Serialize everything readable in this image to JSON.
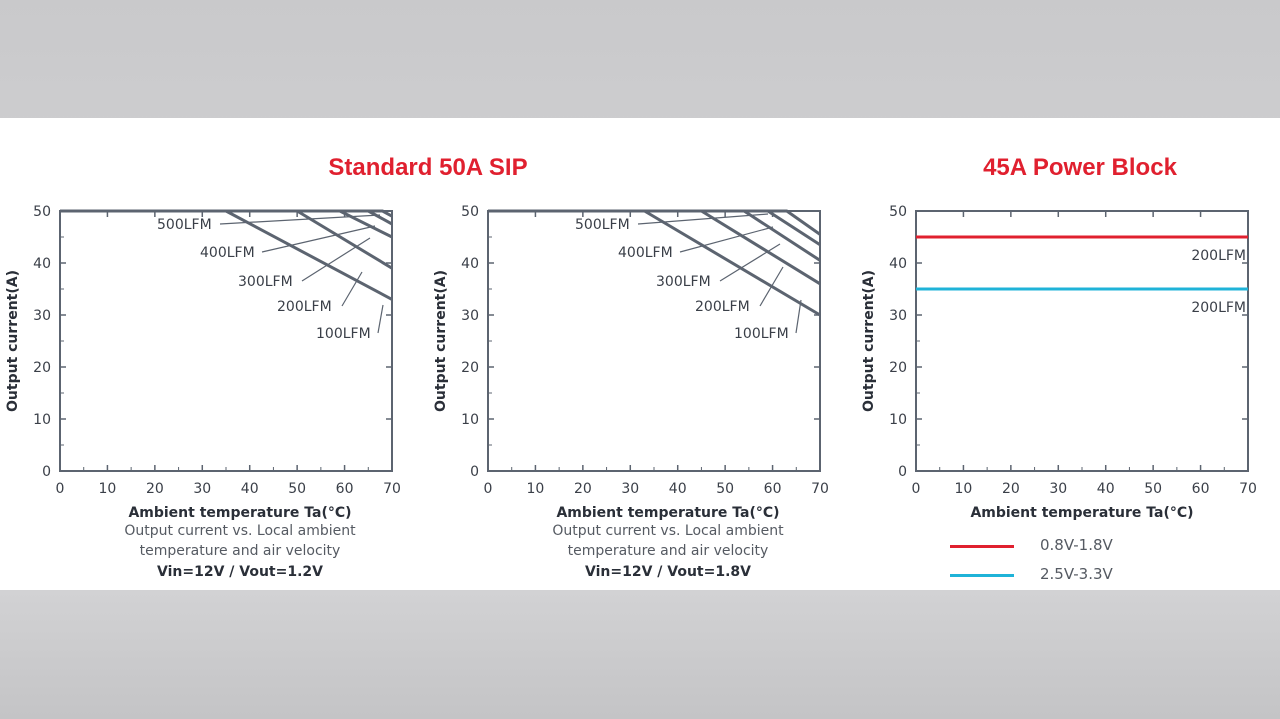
{
  "titles": {
    "sip": "Standard 50A SIP",
    "power_block": "45A Power Block"
  },
  "captions": {
    "chart1": {
      "xlabel": "Ambient temperature Ta(°C)",
      "line1": "Output current vs. Local ambient",
      "line2": "temperature and air velocity",
      "condition": "Vin=12V /  Vout=1.2V"
    },
    "chart2": {
      "xlabel": "Ambient temperature Ta(°C)",
      "line1": "Output current vs. Local ambient",
      "line2": "temperature and air velocity",
      "condition": "Vin=12V /  Vout=1.8V"
    },
    "chart3": {
      "xlabel": "Ambient temperature Ta(°C)"
    }
  },
  "legend": [
    {
      "label": "0.8V-1.8V",
      "color": "#e0202f"
    },
    {
      "label": "2.5V-3.3V",
      "color": "#1fb3d8"
    }
  ],
  "colors": {
    "title_red": "#e0202f",
    "curve_gray": "#5c6470",
    "axis_gray": "#5c6470"
  },
  "chart_data": [
    {
      "type": "line",
      "xlabel": "Ambient temperature Ta(°C)",
      "ylabel": "Output current(A)",
      "xlim": [
        0,
        70
      ],
      "ylim": [
        0,
        50
      ],
      "xticks": [
        0,
        10,
        20,
        30,
        40,
        50,
        60,
        70
      ],
      "yticks": [
        0,
        10,
        20,
        30,
        40,
        50
      ],
      "grid": false,
      "series": [
        {
          "name": "100LFM",
          "x": [
            0,
            35,
            70
          ],
          "y": [
            50,
            50,
            33
          ]
        },
        {
          "name": "200LFM",
          "x": [
            0,
            50,
            70
          ],
          "y": [
            50,
            50,
            39
          ]
        },
        {
          "name": "300LFM",
          "x": [
            0,
            59,
            70
          ],
          "y": [
            50,
            50,
            45
          ]
        },
        {
          "name": "400LFM",
          "x": [
            0,
            65,
            70
          ],
          "y": [
            50,
            50,
            47.5
          ]
        },
        {
          "name": "500LFM",
          "x": [
            0,
            68,
            70
          ],
          "y": [
            50,
            50,
            49
          ]
        }
      ]
    },
    {
      "type": "line",
      "xlabel": "Ambient temperature Ta(°C)",
      "ylabel": "Output current(A)",
      "xlim": [
        0,
        70
      ],
      "ylim": [
        0,
        50
      ],
      "xticks": [
        0,
        10,
        20,
        30,
        40,
        50,
        60,
        70
      ],
      "yticks": [
        0,
        10,
        20,
        30,
        40,
        50
      ],
      "grid": false,
      "series": [
        {
          "name": "100LFM",
          "x": [
            0,
            33,
            70
          ],
          "y": [
            50,
            50,
            30
          ]
        },
        {
          "name": "200LFM",
          "x": [
            0,
            45,
            70
          ],
          "y": [
            50,
            50,
            36
          ]
        },
        {
          "name": "300LFM",
          "x": [
            0,
            54,
            70
          ],
          "y": [
            50,
            50,
            40.5
          ]
        },
        {
          "name": "400LFM",
          "x": [
            0,
            59,
            70
          ],
          "y": [
            50,
            50,
            43.5
          ]
        },
        {
          "name": "500LFM",
          "x": [
            0,
            63,
            70
          ],
          "y": [
            50,
            50,
            45.5
          ]
        }
      ]
    },
    {
      "type": "line",
      "xlabel": "Ambient temperature Ta(°C)",
      "ylabel": "Output current(A)",
      "xlim": [
        0,
        70
      ],
      "ylim": [
        0,
        50
      ],
      "xticks": [
        0,
        10,
        20,
        30,
        40,
        50,
        60,
        70
      ],
      "yticks": [
        0,
        10,
        20,
        30,
        40,
        50
      ],
      "grid": false,
      "legend": "bottom-left",
      "series": [
        {
          "name": "0.8V-1.8V",
          "x": [
            0,
            70
          ],
          "y": [
            45,
            45
          ],
          "color": "#e0202f",
          "label": "200LFM"
        },
        {
          "name": "2.5V-3.3V",
          "x": [
            0,
            70
          ],
          "y": [
            35,
            35
          ],
          "color": "#1fb3d8",
          "label": "200LFM"
        }
      ]
    }
  ]
}
